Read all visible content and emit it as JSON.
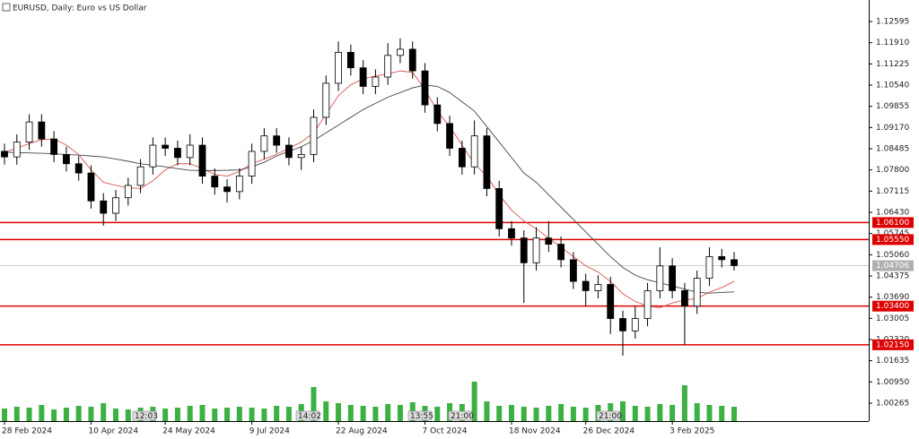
{
  "chart_data": {
    "type": "candlestick",
    "title": "EURUSD, Daily:  Euro vs US Dollar",
    "categories": [
      "28 Feb 2024",
      null,
      null,
      null,
      null,
      null,
      null,
      "10 Apr 2024",
      null,
      null,
      null,
      null,
      null,
      "24 May 2024",
      null,
      null,
      null,
      null,
      null,
      null,
      "9 Jul 2024",
      null,
      null,
      null,
      null,
      null,
      null,
      "22 Aug 2024",
      null,
      null,
      null,
      null,
      null,
      null,
      "7 Oct 2024",
      null,
      null,
      null,
      null,
      null,
      null,
      "18 Nov 2024",
      null,
      null,
      null,
      null,
      null,
      "26 Dec 2024",
      null,
      null,
      null,
      null,
      null,
      null,
      "3 Feb 2025",
      null,
      null,
      null,
      null,
      null
    ],
    "open": [
      1.084,
      1.0822,
      1.087,
      1.0935,
      1.088,
      1.083,
      1.08,
      1.077,
      1.068,
      1.064,
      1.069,
      1.073,
      1.079,
      1.086,
      1.085,
      1.082,
      1.086,
      1.076,
      1.0725,
      1.071,
      1.076,
      1.084,
      1.089,
      1.086,
      1.082,
      1.083,
      1.095,
      1.106,
      1.116,
      1.111,
      1.105,
      1.108,
      1.115,
      1.117,
      1.11,
      1.099,
      1.093,
      1.085,
      1.079,
      1.089,
      1.072,
      1.059,
      1.056,
      1.048,
      1.056,
      1.054,
      1.049,
      1.042,
      1.039,
      1.041,
      1.03,
      1.026,
      1.03,
      1.039,
      1.047,
      1.039,
      1.034,
      1.043,
      1.05,
      1.049
    ],
    "high": [
      1.0865,
      1.0895,
      1.096,
      1.096,
      1.0905,
      1.0855,
      1.0825,
      1.0795,
      1.0705,
      1.0715,
      1.0755,
      1.0815,
      1.0885,
      1.0885,
      1.0875,
      1.0895,
      1.0885,
      1.0785,
      1.075,
      1.0785,
      1.0865,
      1.0915,
      1.0915,
      1.0885,
      1.0855,
      1.0975,
      1.1085,
      1.1195,
      1.1185,
      1.1135,
      1.1105,
      1.119,
      1.1205,
      1.1195,
      1.1125,
      1.1015,
      1.0955,
      1.0875,
      1.094,
      1.0915,
      1.0745,
      1.0615,
      1.0585,
      1.0595,
      1.0615,
      1.0565,
      1.0515,
      1.0445,
      1.044,
      1.0435,
      1.0325,
      1.034,
      1.0415,
      1.053,
      1.0495,
      1.0415,
      1.0455,
      1.053,
      1.0525,
      1.0515
    ],
    "low": [
      1.0797,
      1.0797,
      1.0845,
      1.0855,
      1.0805,
      1.0775,
      1.0745,
      1.0655,
      1.06,
      1.0615,
      1.0665,
      1.0705,
      1.0765,
      1.0825,
      1.0795,
      1.0795,
      1.0735,
      1.07,
      1.0675,
      1.0685,
      1.0735,
      1.0815,
      1.0835,
      1.0795,
      1.078,
      1.0805,
      1.0925,
      1.1035,
      1.1085,
      1.1025,
      1.1025,
      1.1055,
      1.1125,
      1.1075,
      1.0965,
      1.0905,
      1.0825,
      1.0765,
      1.0765,
      1.0695,
      1.0565,
      1.0535,
      1.035,
      1.0455,
      1.0515,
      1.0465,
      1.0395,
      1.034,
      1.0365,
      1.025,
      1.018,
      1.0235,
      1.0275,
      1.0365,
      1.0365,
      1.0215,
      1.0315,
      1.0405,
      1.0465,
      1.0455
    ],
    "close": [
      1.0822,
      1.087,
      1.0935,
      1.088,
      1.083,
      1.08,
      1.077,
      1.068,
      1.064,
      1.069,
      1.073,
      1.079,
      1.086,
      1.085,
      1.082,
      1.086,
      1.076,
      1.0725,
      1.071,
      1.076,
      1.084,
      1.089,
      1.086,
      1.082,
      1.083,
      1.095,
      1.106,
      1.116,
      1.111,
      1.105,
      1.108,
      1.115,
      1.117,
      1.11,
      1.099,
      1.093,
      1.085,
      1.079,
      1.089,
      1.072,
      1.059,
      1.056,
      1.048,
      1.056,
      1.054,
      1.049,
      1.042,
      1.039,
      1.041,
      1.03,
      1.026,
      1.03,
      1.039,
      1.047,
      1.039,
      1.034,
      1.043,
      1.05,
      1.049,
      1.0471
    ],
    "moving_averages": [
      {
        "color": "#d9534f",
        "values": [
          1.0837,
          1.085,
          1.0865,
          1.0878,
          1.088,
          1.086,
          1.083,
          1.078,
          1.074,
          1.073,
          1.0722,
          1.072,
          1.0745,
          1.078,
          1.08,
          1.08,
          1.0785,
          1.0765,
          1.076,
          1.0775,
          1.08,
          1.0815,
          1.083,
          1.085,
          1.087,
          1.09,
          1.096,
          1.102,
          1.1055,
          1.1075,
          1.1083,
          1.109,
          1.11,
          1.1095,
          1.104,
          1.097,
          1.092,
          1.086,
          1.08,
          1.076,
          1.07,
          1.065,
          1.0615,
          1.059,
          1.056,
          1.053,
          1.05,
          1.047,
          1.045,
          1.042,
          1.038,
          1.0355,
          1.034,
          1.0335,
          1.035,
          1.036,
          1.0365,
          1.0385,
          1.04,
          1.042
        ]
      },
      {
        "color": "#444444",
        "values": [
          1.0837,
          1.0836,
          1.0835,
          1.0834,
          1.0832,
          1.083,
          1.0828,
          1.0825,
          1.0822,
          1.0815,
          1.0808,
          1.08,
          1.0795,
          1.079,
          1.0784,
          1.0779,
          1.0778,
          1.0778,
          1.0779,
          1.078,
          1.079,
          1.0805,
          1.0825,
          1.084,
          1.0855,
          1.0875,
          1.09,
          1.0925,
          1.095,
          1.0975,
          1.0995,
          1.1015,
          1.103,
          1.1045,
          1.1054,
          1.105,
          1.103,
          1.1,
          1.097,
          1.092,
          1.087,
          1.082,
          1.077,
          1.074,
          1.07,
          1.066,
          1.062,
          1.058,
          1.054,
          1.05,
          1.0465,
          1.044,
          1.0425,
          1.0415,
          1.0405,
          1.0395,
          1.0385,
          1.0382,
          1.0384,
          1.0386
        ]
      }
    ],
    "volume": {
      "color": "#3cb043",
      "values": [
        14,
        16,
        15,
        18,
        13,
        15,
        17,
        16,
        20,
        14,
        13,
        15,
        16,
        14,
        15,
        17,
        18,
        14,
        15,
        16,
        15,
        14,
        17,
        16,
        19,
        38,
        22,
        20,
        18,
        17,
        16,
        19,
        18,
        21,
        17,
        16,
        20,
        19,
        44,
        22,
        17,
        18,
        16,
        15,
        17,
        19,
        16,
        15,
        18,
        20,
        22,
        17,
        16,
        19,
        18,
        40,
        20,
        18,
        17,
        16
      ]
    },
    "levels": [
      {
        "value": 1.061,
        "label": "1.06100",
        "color": "#dd0000"
      },
      {
        "value": 1.0555,
        "label": "1.05550",
        "color": "#dd0000"
      },
      {
        "value": 1.034,
        "label": "1.03400",
        "color": "#dd0000"
      },
      {
        "value": 1.0215,
        "label": "1.02150",
        "color": "#dd0000"
      }
    ],
    "last_price": {
      "value": 1.04706,
      "label": "1.04706",
      "color": "#b0b0b0"
    },
    "time_markers": [
      "12:03",
      "14:02",
      "13:55",
      "21:00",
      "21:00"
    ],
    "ylim": [
      0.99686,
      1.1329
    ],
    "yticks": [
      1.12595,
      {
        "value": 1.1191,
        "label": "1.11910"
      },
      1.11225,
      {
        "value": 1.1054,
        "label": "1.10540"
      },
      1.09855,
      {
        "value": 1.0917,
        "label": "1.09170"
      },
      1.08485,
      {
        "value": 1.078,
        "label": "1.07800"
      },
      1.07115,
      {
        "value": 1.0643,
        "label": "1.06430"
      },
      1.05745,
      {
        "value": 1.0506,
        "label": "1.05060"
      },
      1.04375,
      {
        "value": 1.0369,
        "label": "1.03690"
      },
      1.03005,
      {
        "value": 1.0232,
        "label": "1.02320"
      },
      1.01635,
      {
        "value": 1.0095,
        "label": "1.00950"
      },
      1.00265
    ]
  }
}
